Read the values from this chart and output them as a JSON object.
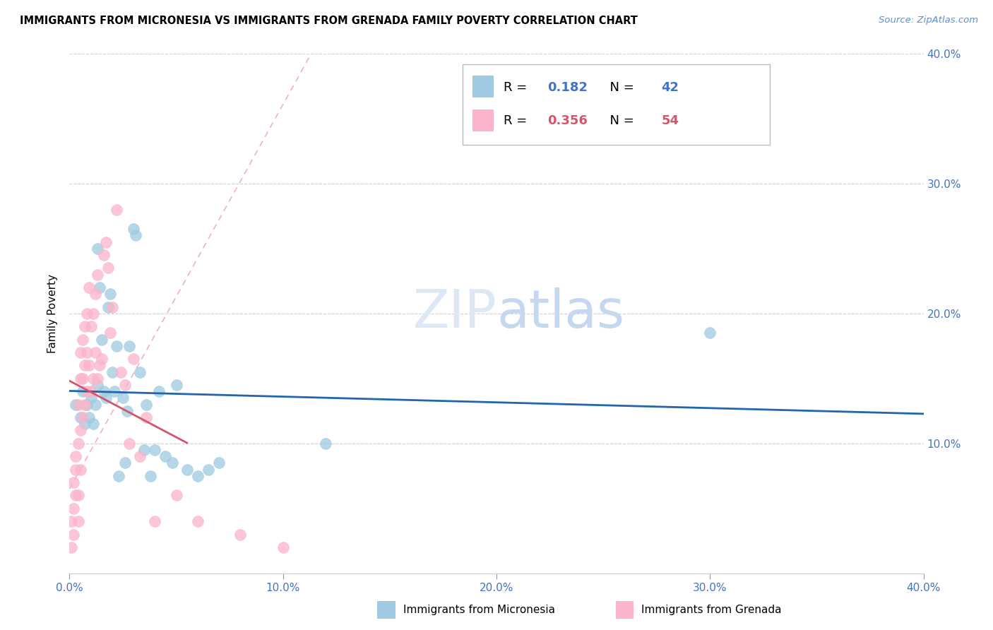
{
  "title": "IMMIGRANTS FROM MICRONESIA VS IMMIGRANTS FROM GRENADA FAMILY POVERTY CORRELATION CHART",
  "source": "Source: ZipAtlas.com",
  "ylabel_label": "Family Poverty",
  "legend_blue_R": "0.182",
  "legend_blue_N": "42",
  "legend_pink_R": "0.356",
  "legend_pink_N": "54",
  "legend_label_blue": "Immigrants from Micronesia",
  "legend_label_pink": "Immigrants from Grenada",
  "color_blue": "#9ecae1",
  "color_pink": "#fbb4c9",
  "color_trendline_blue": "#2166ac",
  "color_trendline_pink": "#d6546e",
  "xlim": [
    0.0,
    0.4
  ],
  "ylim": [
    0.0,
    0.4
  ],
  "ytick_values": [
    0.0,
    0.1,
    0.2,
    0.3,
    0.4
  ],
  "ytick_labels": [
    "",
    "10.0%",
    "20.0%",
    "30.0%",
    "40.0%"
  ],
  "xtick_values": [
    0.0,
    0.1,
    0.2,
    0.3,
    0.4
  ],
  "xtick_labels": [
    "0.0%",
    "10.0%",
    "20.0%",
    "30.0%",
    "40.0%"
  ],
  "micronesia_x": [
    0.003,
    0.005,
    0.006,
    0.007,
    0.008,
    0.009,
    0.01,
    0.011,
    0.012,
    0.013,
    0.013,
    0.014,
    0.015,
    0.016,
    0.017,
    0.018,
    0.019,
    0.02,
    0.021,
    0.022,
    0.023,
    0.025,
    0.026,
    0.027,
    0.028,
    0.03,
    0.031,
    0.033,
    0.035,
    0.036,
    0.038,
    0.04,
    0.042,
    0.045,
    0.048,
    0.05,
    0.055,
    0.06,
    0.065,
    0.07,
    0.12,
    0.3
  ],
  "micronesia_y": [
    0.13,
    0.12,
    0.14,
    0.115,
    0.13,
    0.12,
    0.135,
    0.115,
    0.13,
    0.145,
    0.25,
    0.22,
    0.18,
    0.14,
    0.135,
    0.205,
    0.215,
    0.155,
    0.14,
    0.175,
    0.075,
    0.135,
    0.085,
    0.125,
    0.175,
    0.265,
    0.26,
    0.155,
    0.095,
    0.13,
    0.075,
    0.095,
    0.14,
    0.09,
    0.085,
    0.145,
    0.08,
    0.075,
    0.08,
    0.085,
    0.1,
    0.185
  ],
  "grenada_x": [
    0.001,
    0.001,
    0.002,
    0.002,
    0.002,
    0.003,
    0.003,
    0.003,
    0.004,
    0.004,
    0.004,
    0.004,
    0.005,
    0.005,
    0.005,
    0.005,
    0.006,
    0.006,
    0.006,
    0.007,
    0.007,
    0.007,
    0.008,
    0.008,
    0.008,
    0.009,
    0.009,
    0.01,
    0.01,
    0.011,
    0.011,
    0.012,
    0.012,
    0.013,
    0.013,
    0.014,
    0.015,
    0.016,
    0.017,
    0.018,
    0.019,
    0.02,
    0.022,
    0.024,
    0.026,
    0.028,
    0.03,
    0.033,
    0.036,
    0.04,
    0.05,
    0.06,
    0.08,
    0.1
  ],
  "grenada_y": [
    0.02,
    0.04,
    0.05,
    0.07,
    0.03,
    0.06,
    0.08,
    0.09,
    0.04,
    0.06,
    0.1,
    0.13,
    0.08,
    0.11,
    0.15,
    0.17,
    0.12,
    0.15,
    0.18,
    0.13,
    0.16,
    0.19,
    0.14,
    0.17,
    0.2,
    0.16,
    0.22,
    0.14,
    0.19,
    0.15,
    0.2,
    0.17,
    0.215,
    0.15,
    0.23,
    0.16,
    0.165,
    0.245,
    0.255,
    0.235,
    0.185,
    0.205,
    0.28,
    0.155,
    0.145,
    0.1,
    0.165,
    0.09,
    0.12,
    0.04,
    0.06,
    0.04,
    0.03,
    0.02
  ]
}
